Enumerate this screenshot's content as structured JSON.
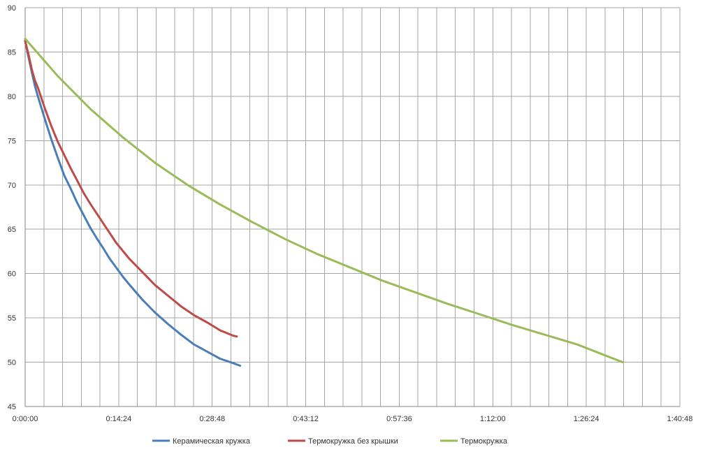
{
  "chart_data": {
    "type": "line",
    "title": "",
    "xlabel": "",
    "ylabel": "",
    "x_unit": "minutes",
    "xlim": [
      0,
      100.8
    ],
    "ylim": [
      45,
      90
    ],
    "y_ticks": [
      45,
      50,
      55,
      60,
      65,
      70,
      75,
      80,
      85,
      90
    ],
    "x_ticks": [
      {
        "value": 0,
        "label": "0:00:00"
      },
      {
        "value": 14.4,
        "label": "0:14:24"
      },
      {
        "value": 28.8,
        "label": "0:28:48"
      },
      {
        "value": 43.2,
        "label": "0:43:12"
      },
      {
        "value": 57.6,
        "label": "0:57:36"
      },
      {
        "value": 72,
        "label": "1:12:00"
      },
      {
        "value": 86.4,
        "label": "1:26:24"
      },
      {
        "value": 100.8,
        "label": "1:40:48"
      }
    ],
    "x_minor_step": 2.88,
    "grid": true,
    "legend_position": "bottom",
    "series": [
      {
        "name": "Керамическая кружка",
        "color": "#4a7ebb",
        "x": [
          0,
          0.5,
          1,
          1.5,
          2,
          3,
          4,
          5,
          6,
          7,
          8,
          9,
          10,
          11,
          12,
          13,
          14,
          15,
          16,
          18,
          20,
          22,
          24,
          26,
          28,
          30,
          32,
          33.1
        ],
        "y": [
          86.3,
          84.5,
          82.8,
          81.2,
          79.9,
          77.5,
          75.2,
          73.1,
          71.1,
          69.6,
          68.0,
          66.6,
          65.2,
          64.0,
          62.9,
          61.7,
          60.7,
          59.7,
          58.8,
          57.1,
          55.6,
          54.3,
          53.1,
          52.0,
          51.2,
          50.4,
          49.9,
          49.6
        ]
      },
      {
        "name": "Термокружка без крышки",
        "color": "#be4b48",
        "x": [
          0,
          0.5,
          1,
          1.5,
          2,
          3,
          4,
          5,
          6,
          7,
          8,
          9,
          10,
          11,
          12,
          13,
          14,
          15,
          16,
          18,
          20,
          22,
          24,
          26,
          28,
          30,
          32,
          32.6
        ],
        "y": [
          86.2,
          84.8,
          83.1,
          81.8,
          80.9,
          78.7,
          76.7,
          74.9,
          73.4,
          71.9,
          70.5,
          69.1,
          67.9,
          66.8,
          65.7,
          64.6,
          63.5,
          62.6,
          61.7,
          60.2,
          58.7,
          57.5,
          56.3,
          55.3,
          54.5,
          53.6,
          53.0,
          52.9
        ]
      },
      {
        "name": "Термокружка",
        "color": "#9bbb59",
        "x": [
          0,
          5,
          10,
          15,
          20,
          25,
          30,
          35,
          40,
          45,
          50,
          55,
          60,
          65,
          70,
          75,
          80,
          85,
          92
        ],
        "y": [
          86.5,
          82.3,
          78.6,
          75.4,
          72.5,
          70.0,
          67.8,
          65.8,
          63.9,
          62.2,
          60.7,
          59.2,
          57.9,
          56.6,
          55.4,
          54.2,
          53.1,
          52.0,
          50.0
        ]
      }
    ]
  }
}
